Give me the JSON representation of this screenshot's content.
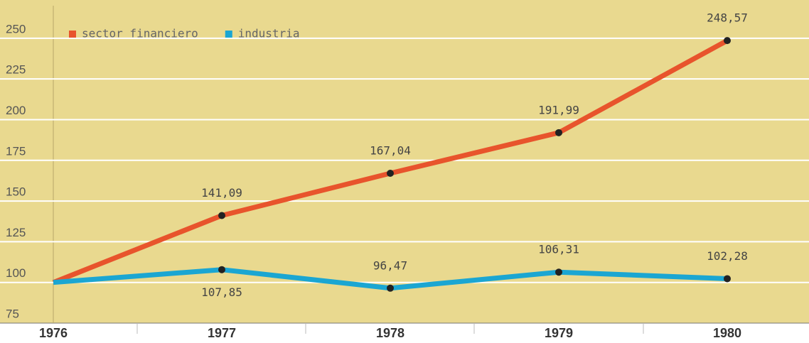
{
  "chart_data": {
    "type": "line",
    "categories": [
      "1976",
      "1977",
      "1978",
      "1979",
      "1980"
    ],
    "series": [
      {
        "name": "sector financiero",
        "color": "#e8542c",
        "values": [
          100,
          141.09,
          167.04,
          191.99,
          248.57
        ],
        "value_labels": [
          null,
          "141,09",
          "167,04",
          "191,99",
          "248,57"
        ]
      },
      {
        "name": "industria",
        "color": "#1ba6d2",
        "values": [
          100,
          107.85,
          96.47,
          106.31,
          102.28
        ],
        "value_labels": [
          null,
          "107,85",
          "96,47",
          "106,31",
          "102,28"
        ]
      }
    ],
    "ylim": [
      75,
      270
    ],
    "yticks": [
      75,
      100,
      125,
      150,
      175,
      200,
      225,
      250
    ],
    "grid": true,
    "legend": "upper left"
  }
}
